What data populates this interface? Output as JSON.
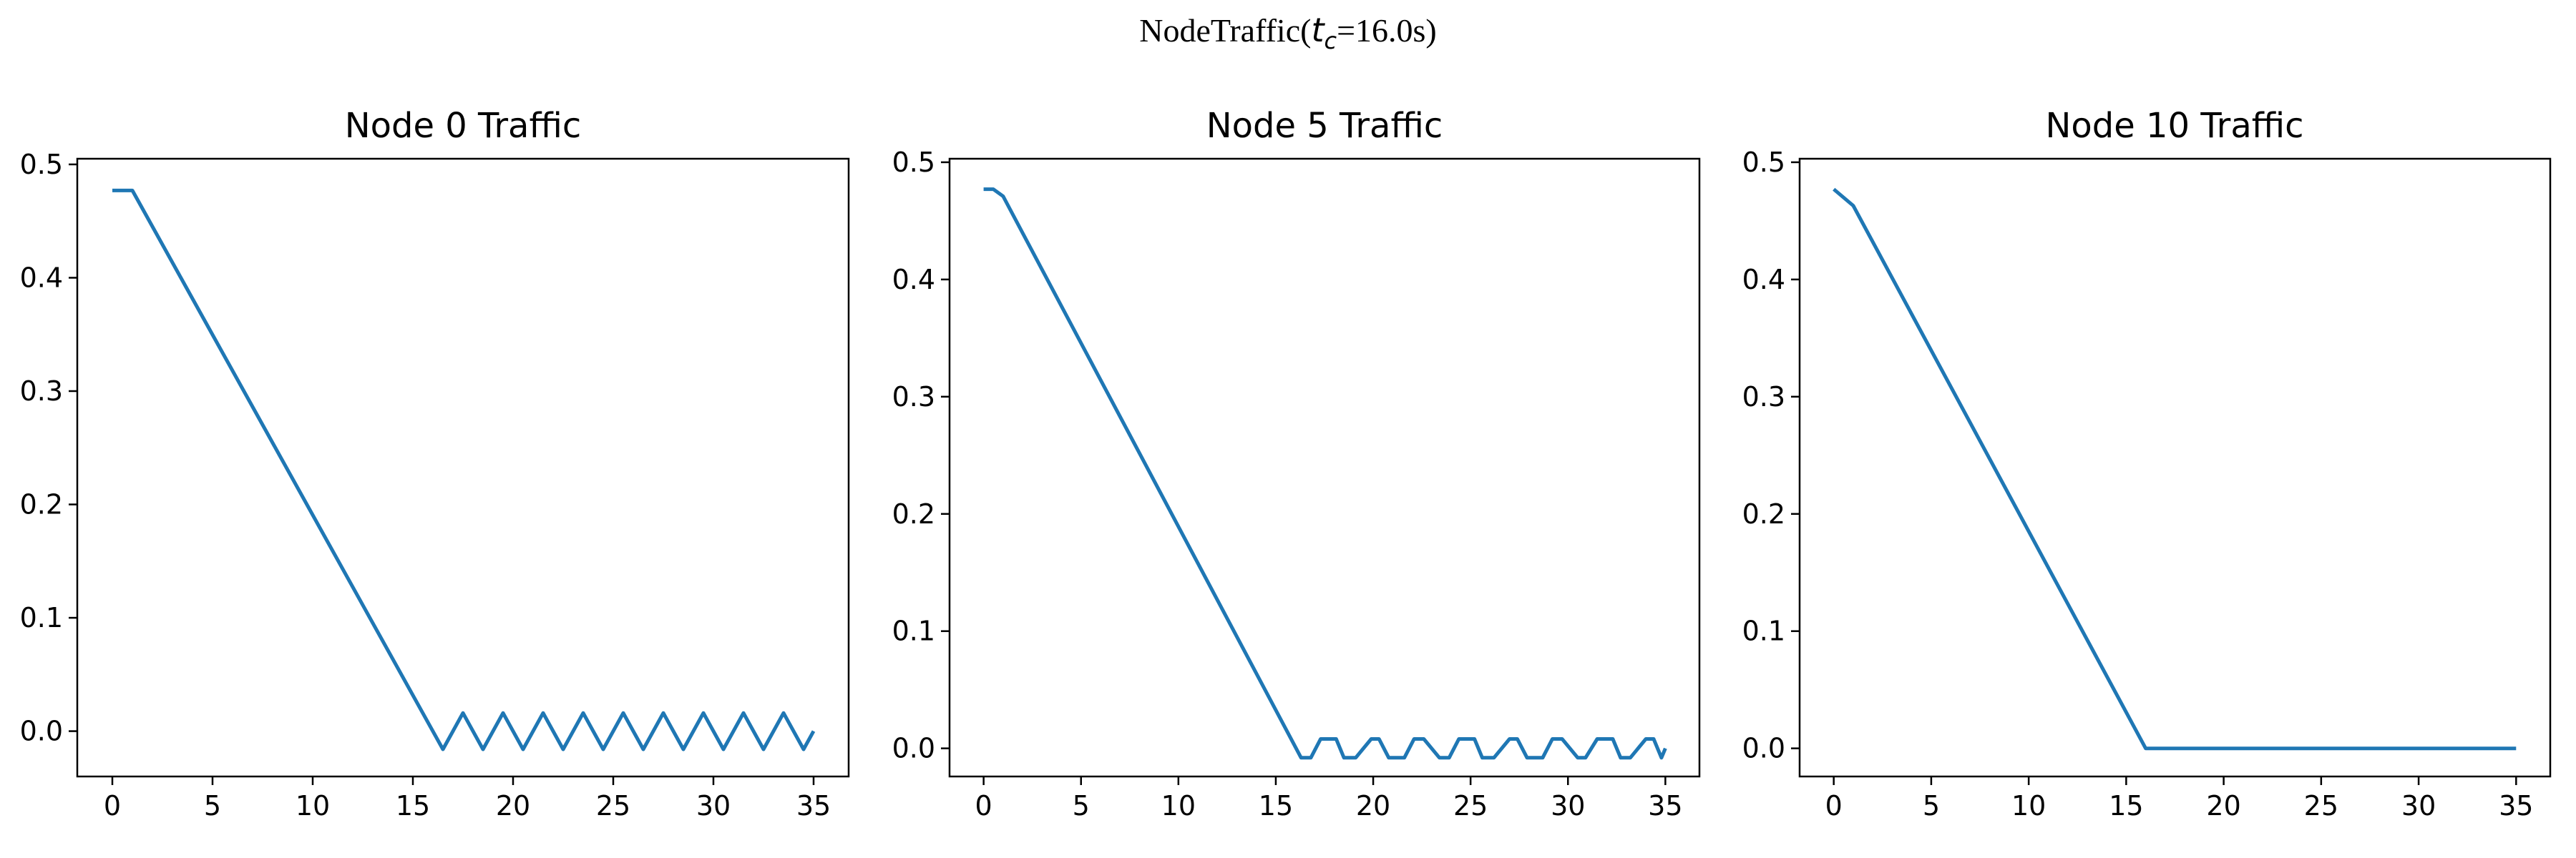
{
  "figure": {
    "suptitle_prefix": "NodeTraffic(",
    "suptitle_var": "t",
    "suptitle_sub": "c",
    "suptitle_suffix": "=16.0s)"
  },
  "chart_data": [
    {
      "type": "line",
      "title": "Node 0 Traffic",
      "xlabel": "",
      "ylabel": "",
      "xlim": [
        -1.75,
        36.75
      ],
      "ylim": [
        -0.04,
        0.505
      ],
      "xticks": [
        0,
        5,
        10,
        15,
        20,
        25,
        30,
        35
      ],
      "xtick_labels": [
        "0",
        "5",
        "10",
        "15",
        "20",
        "25",
        "30",
        "35"
      ],
      "yticks": [
        0.0,
        0.1,
        0.2,
        0.3,
        0.4,
        0.5
      ],
      "ytick_labels": [
        "0.0",
        "0.1",
        "0.2",
        "0.3",
        "0.4",
        "0.5"
      ],
      "grid": false,
      "color": "#1f77b4",
      "series": [
        {
          "x": [
            0,
            0.5,
            1,
            16.5,
            17.5,
            18.5,
            19.5,
            20.5,
            21.5,
            22.5,
            23.5,
            24.5,
            25.5,
            26.5,
            27.5,
            28.5,
            29.5,
            30.5,
            31.5,
            32.5,
            33.5,
            34.5,
            35
          ],
          "y": [
            0.477,
            0.477,
            0.477,
            -0.016,
            0.016,
            -0.016,
            0.016,
            -0.016,
            0.016,
            -0.016,
            0.016,
            -0.016,
            0.016,
            -0.016,
            0.016,
            -0.016,
            0.016,
            -0.016,
            0.016,
            -0.016,
            0.016,
            -0.016,
            0.0
          ]
        }
      ]
    },
    {
      "type": "line",
      "title": "Node 5 Traffic",
      "xlabel": "",
      "ylabel": "",
      "xlim": [
        -1.75,
        36.75
      ],
      "ylim": [
        -0.024,
        0.503
      ],
      "xticks": [
        0,
        5,
        10,
        15,
        20,
        25,
        30,
        35
      ],
      "xtick_labels": [
        "0",
        "5",
        "10",
        "15",
        "20",
        "25",
        "30",
        "35"
      ],
      "yticks": [
        0.0,
        0.1,
        0.2,
        0.3,
        0.4,
        0.5
      ],
      "ytick_labels": [
        "0.0",
        "0.1",
        "0.2",
        "0.3",
        "0.4",
        "0.5"
      ],
      "grid": false,
      "color": "#1f77b4",
      "series": [
        {
          "x": [
            0,
            0.5,
            1,
            16.3,
            16.8,
            17.3,
            18.1,
            18.5,
            19.1,
            19.9,
            20.3,
            20.8,
            21.6,
            22.1,
            22.6,
            23.4,
            23.9,
            24.4,
            25.2,
            25.6,
            26.2,
            27.0,
            27.4,
            27.9,
            28.7,
            29.2,
            29.7,
            30.5,
            30.9,
            31.5,
            32.3,
            32.7,
            33.2,
            34.0,
            34.4,
            34.8,
            35
          ],
          "y": [
            0.477,
            0.477,
            0.471,
            -0.008,
            -0.008,
            0.008,
            0.008,
            -0.008,
            -0.008,
            0.008,
            0.008,
            -0.008,
            -0.008,
            0.008,
            0.008,
            -0.008,
            -0.008,
            0.008,
            0.008,
            -0.008,
            -0.008,
            0.008,
            0.008,
            -0.008,
            -0.008,
            0.008,
            0.008,
            -0.008,
            -0.008,
            0.008,
            0.008,
            -0.008,
            -0.008,
            0.008,
            0.008,
            -0.008,
            0.0
          ]
        }
      ]
    },
    {
      "type": "line",
      "title": "Node 10 Traffic",
      "xlabel": "",
      "ylabel": "",
      "xlim": [
        -1.75,
        36.75
      ],
      "ylim": [
        -0.024,
        0.503
      ],
      "xticks": [
        0,
        5,
        10,
        15,
        20,
        25,
        30,
        35
      ],
      "xtick_labels": [
        "0",
        "5",
        "10",
        "15",
        "20",
        "25",
        "30",
        "35"
      ],
      "yticks": [
        0.0,
        0.1,
        0.2,
        0.3,
        0.4,
        0.5
      ],
      "ytick_labels": [
        "0.0",
        "0.1",
        "0.2",
        "0.3",
        "0.4",
        "0.5"
      ],
      "grid": false,
      "color": "#1f77b4",
      "series": [
        {
          "x": [
            0,
            1,
            16,
            35
          ],
          "y": [
            0.477,
            0.463,
            0.0,
            0.0
          ]
        }
      ]
    }
  ]
}
